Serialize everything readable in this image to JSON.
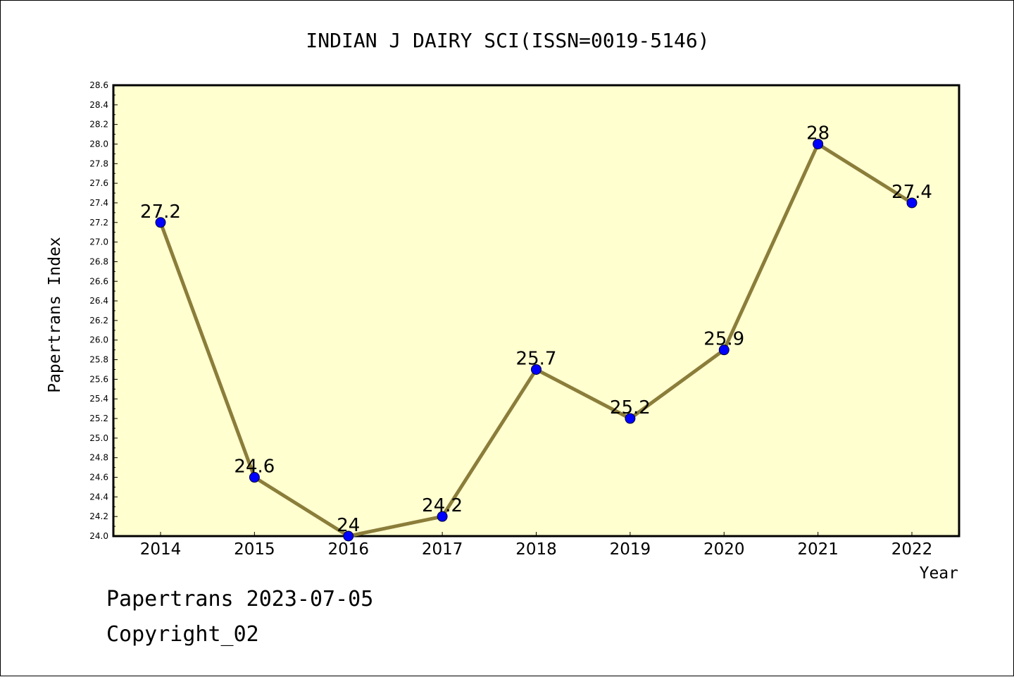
{
  "chart_data": {
    "type": "line",
    "title": "INDIAN J DAIRY SCI(ISSN=0019-5146)",
    "xlabel": "Year",
    "ylabel": "Papertrans Index",
    "categories": [
      "2014",
      "2015",
      "2016",
      "2017",
      "2018",
      "2019",
      "2020",
      "2021",
      "2022"
    ],
    "series": [
      {
        "values": [
          27.2,
          24.6,
          24.0,
          24.2,
          25.7,
          25.2,
          25.9,
          28.0,
          27.4
        ],
        "labels": [
          "27.2",
          "24.6",
          "24",
          "24.2",
          "25.7",
          "25.2",
          "25.9",
          "28",
          "27.4"
        ]
      }
    ],
    "ylim": [
      24.0,
      28.6
    ],
    "ytick_step": 0.2,
    "yticks": [
      "24.0",
      "24.2",
      "24.4",
      "24.6",
      "24.8",
      "25.0",
      "25.2",
      "25.4",
      "25.6",
      "25.8",
      "26.0",
      "26.2",
      "26.4",
      "26.6",
      "26.8",
      "27.0",
      "27.2",
      "27.4",
      "27.6",
      "27.8",
      "28.0",
      "28.2",
      "28.4",
      "28.6"
    ],
    "grid": false,
    "legend": "none",
    "colors": {
      "plot_background": "#ffffd0",
      "line": "#8b7d3a",
      "marker": "#0000ff",
      "axis": "#000000"
    }
  },
  "footer": {
    "line1": "Papertrans 2023-07-05",
    "line2": "Copyright_02"
  }
}
